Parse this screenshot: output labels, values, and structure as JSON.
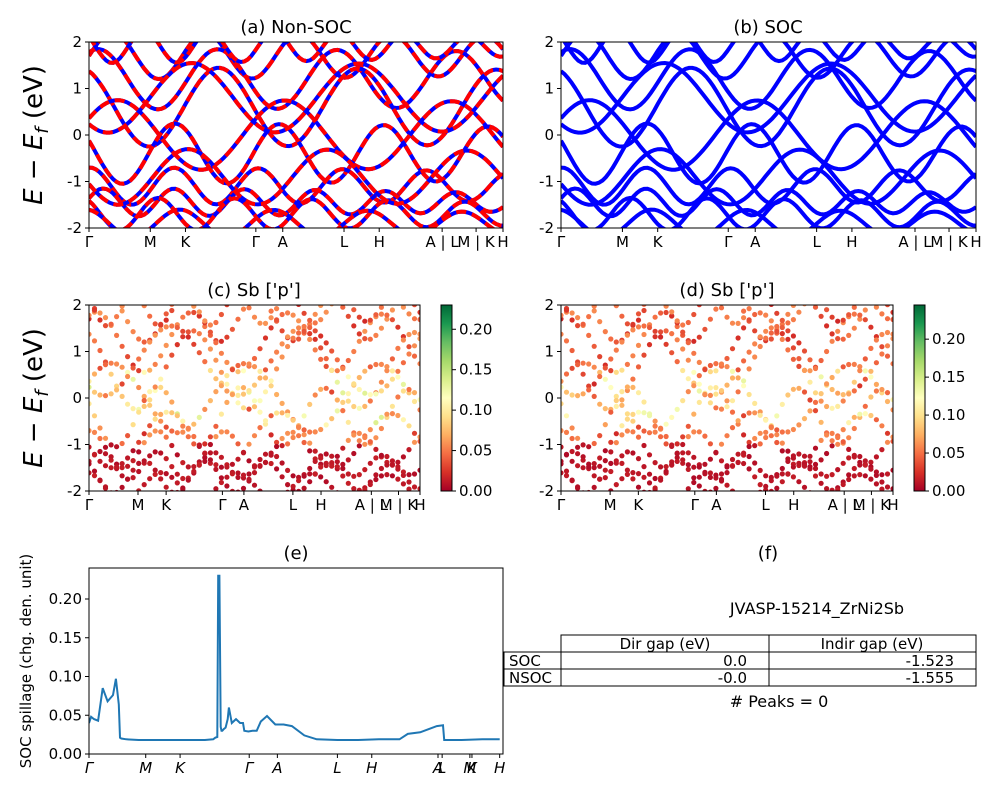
{
  "figure": {
    "ylabel_main": "E − E",
    "ylabel_sub": "f",
    "ylabel_unit": " (eV)"
  },
  "chart_data": [
    {
      "panel": "a",
      "type": "line",
      "title": "(a) Non-SOC",
      "ylim": [
        -2,
        2
      ],
      "yticks": [
        -2,
        -1,
        0,
        1,
        2
      ],
      "xticks": [
        {
          "label": "Γ",
          "x": 0.0
        },
        {
          "label": "M",
          "x": 0.148
        },
        {
          "label": "K",
          "x": 0.233
        },
        {
          "label": "Γ",
          "x": 0.403
        },
        {
          "label": "A",
          "x": 0.468
        },
        {
          "label": "L",
          "x": 0.616
        },
        {
          "label": "H",
          "x": 0.701
        },
        {
          "label": "A | L",
          "x": 0.853
        },
        {
          "label": "M | K",
          "x": 0.935
        },
        {
          "label": "H",
          "x": 1.0
        }
      ],
      "series": [
        {
          "color": "#0000ff",
          "style": "solid",
          "values": []
        },
        {
          "color": "#ff0000",
          "style": "dashed",
          "values": []
        }
      ]
    },
    {
      "panel": "b",
      "type": "line",
      "title": "(b) SOC",
      "ylim": [
        -2,
        2
      ],
      "yticks": [
        -2,
        -1,
        0,
        1,
        2
      ],
      "xticks": [
        {
          "label": "Γ",
          "x": 0.0
        },
        {
          "label": "M",
          "x": 0.148
        },
        {
          "label": "K",
          "x": 0.233
        },
        {
          "label": "Γ",
          "x": 0.403
        },
        {
          "label": "A",
          "x": 0.468
        },
        {
          "label": "L",
          "x": 0.616
        },
        {
          "label": "H",
          "x": 0.701
        },
        {
          "label": "A | L",
          "x": 0.853
        },
        {
          "label": "M | K",
          "x": 0.935
        },
        {
          "label": "H",
          "x": 1.0
        }
      ],
      "series": [
        {
          "color": "#0000ff",
          "style": "solid"
        }
      ]
    },
    {
      "panel": "c",
      "type": "scatter",
      "title": "(c)  Sb ['p']",
      "ylim": [
        -2,
        2
      ],
      "yticks": [
        -2,
        -1,
        0,
        1,
        2
      ],
      "colorbar": {
        "ticks": [
          "0.00",
          "0.05",
          "0.10",
          "0.15",
          "0.20"
        ],
        "min": 0,
        "max": 0.23,
        "colormap": "RdYlGn"
      },
      "xticks": [
        {
          "label": "Γ",
          "x": 0.0
        },
        {
          "label": "M",
          "x": 0.148
        },
        {
          "label": "K",
          "x": 0.233
        },
        {
          "label": "Γ",
          "x": 0.403
        },
        {
          "label": "A",
          "x": 0.468
        },
        {
          "label": "L",
          "x": 0.616
        },
        {
          "label": "H",
          "x": 0.701
        },
        {
          "label": "A | L",
          "x": 0.853
        },
        {
          "label": "M | K",
          "x": 0.935
        },
        {
          "label": "H",
          "x": 1.0
        }
      ]
    },
    {
      "panel": "d",
      "type": "scatter",
      "title": "(d) Sb ['p']",
      "ylim": [
        -2,
        2
      ],
      "yticks": [
        -2,
        -1,
        0,
        1,
        2
      ],
      "colorbar": {
        "ticks": [
          "0.00",
          "0.05",
          "0.10",
          "0.15",
          "0.20"
        ],
        "min": 0,
        "max": 0.245,
        "colormap": "RdYlGn"
      },
      "xticks": [
        {
          "label": "Γ",
          "x": 0.0
        },
        {
          "label": "M",
          "x": 0.148
        },
        {
          "label": "K",
          "x": 0.233
        },
        {
          "label": "Γ",
          "x": 0.403
        },
        {
          "label": "A",
          "x": 0.468
        },
        {
          "label": "L",
          "x": 0.616
        },
        {
          "label": "H",
          "x": 0.701
        },
        {
          "label": "A | L",
          "x": 0.853
        },
        {
          "label": "M | K",
          "x": 0.935
        },
        {
          "label": "H",
          "x": 1.0
        }
      ]
    },
    {
      "panel": "e",
      "type": "line",
      "title": "(e)",
      "ylabel": "SOC spillage (chg. den. unit)",
      "ylim": [
        0,
        0.24
      ],
      "yticks": [
        "0.00",
        "0.05",
        "0.10",
        "0.15",
        "0.20"
      ],
      "xticks": [
        {
          "label": "Γ",
          "x": 0.0
        },
        {
          "label": "M",
          "x": 0.137
        },
        {
          "label": "K",
          "x": 0.22
        },
        {
          "label": "Γ",
          "x": 0.387
        },
        {
          "label": "A",
          "x": 0.455
        },
        {
          "label": "L",
          "x": 0.6
        },
        {
          "label": "H",
          "x": 0.683
        },
        {
          "label": "A",
          "x": 0.843
        },
        {
          "label": "L",
          "x": 0.853
        },
        {
          "label": "M",
          "x": 0.92
        },
        {
          "label": "K",
          "x": 0.925
        },
        {
          "label": "H",
          "x": 0.992
        }
      ],
      "x": [
        0.0,
        0.005,
        0.012,
        0.022,
        0.033,
        0.045,
        0.058,
        0.065,
        0.072,
        0.075,
        0.078,
        0.09,
        0.12,
        0.16,
        0.2,
        0.24,
        0.28,
        0.3,
        0.305,
        0.31,
        0.312,
        0.315,
        0.318,
        0.32,
        0.322,
        0.325,
        0.33,
        0.335,
        0.338,
        0.345,
        0.355,
        0.365,
        0.372,
        0.375,
        0.385,
        0.395,
        0.405,
        0.415,
        0.43,
        0.45,
        0.47,
        0.49,
        0.52,
        0.55,
        0.6,
        0.65,
        0.7,
        0.75,
        0.77,
        0.8,
        0.82,
        0.84,
        0.855,
        0.858,
        0.9,
        0.95,
        0.992
      ],
      "values": [
        0.04,
        0.048,
        0.045,
        0.043,
        0.085,
        0.068,
        0.076,
        0.097,
        0.064,
        0.021,
        0.02,
        0.019,
        0.018,
        0.018,
        0.018,
        0.018,
        0.018,
        0.019,
        0.021,
        0.022,
        0.23,
        0.23,
        0.035,
        0.03,
        0.03,
        0.032,
        0.034,
        0.045,
        0.06,
        0.04,
        0.045,
        0.04,
        0.04,
        0.03,
        0.029,
        0.03,
        0.03,
        0.042,
        0.049,
        0.038,
        0.038,
        0.036,
        0.024,
        0.019,
        0.018,
        0.018,
        0.019,
        0.019,
        0.026,
        0.028,
        0.032,
        0.036,
        0.037,
        0.018,
        0.018,
        0.019,
        0.019
      ],
      "color": "#1f77b4"
    }
  ],
  "panel_f": {
    "title": "(f)",
    "subtitle": "JVASP-15214_ZrNi2Sb",
    "table": {
      "headers": [
        "",
        "Dir gap (eV)",
        "Indir gap (eV)"
      ],
      "rows": [
        [
          "SOC",
          "0.0",
          "-1.523"
        ],
        [
          "NSOC",
          "-0.0",
          "-1.555"
        ]
      ]
    },
    "peaks_label": "# Peaks = 0"
  }
}
